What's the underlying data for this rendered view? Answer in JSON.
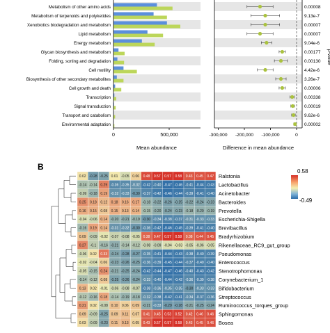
{
  "panel_a": {
    "axis_ticks": [
      "0",
      "500,000"
    ],
    "xlabel": "Mean abundance",
    "diff_xlabel": "Difference in mean abundance",
    "diff_ticks": [
      "-300,000",
      "-200,000",
      "-100,000",
      "0"
    ],
    "pvalue_label": "p-value",
    "colors": {
      "blue": "#5b8fdc",
      "green": "#bcd65a",
      "stripe": "#e6e6e6",
      "point": "#aac23e"
    }
  },
  "panel_b": {
    "label": "B",
    "legend_max": "0.58",
    "legend_min": "-0.49",
    "colors": {
      "low": "#2b6ca8",
      "mid": "#f4efb2",
      "high": "#d63027"
    }
  },
  "chart_data": [
    {
      "type": "bar",
      "categories": [
        "Metabolism of other amino acids",
        "Metabolism of terpenoids and polyketides",
        "Xenobiotics biodegradation and metabolism",
        "Lipid metabolism",
        "Energy metabolism",
        "Glycan biosynthesis and metabolism",
        "Folding, sorting and degradation",
        "Cell motility",
        "Biosynthesis of other secondary metabolites",
        "Cell growth and death",
        "Transcription",
        "Signal transduction",
        "Transport and catabolism",
        "Environmental adaptation"
      ],
      "series": [
        {
          "values": [
            390000,
            360000,
            480000,
            305000,
            255000,
            45000,
            35000,
            90000,
            30000,
            15000,
            8000,
            5000,
            3000,
            2000
          ]
        },
        {
          "values": [
            530000,
            480000,
            600000,
            445000,
            370000,
            100000,
            95000,
            210000,
            90000,
            70000,
            25000,
            20000,
            15000,
            8000
          ]
        }
      ],
      "xlim": [
        0,
        700000
      ],
      "xlabel": "Mean abundance"
    },
    {
      "type": "scatter",
      "categories": [
        "Metabolism of other amino acids",
        "Metabolism of terpenoids and polyketides",
        "Xenobiotics biodegradation and metabolism",
        "Lipid metabolism",
        "Energy metabolism",
        "Glycan biosynthesis and metabolism",
        "Folding, sorting and degradation",
        "Cell motility",
        "Biosynthesis of other secondary metabolites",
        "Cell growth and death",
        "Transcription",
        "Signal transduction",
        "Transport and catabolism",
        "Environmental adaptation"
      ],
      "x": [
        -140000,
        -120000,
        -120000,
        -140000,
        -115000,
        -55000,
        -60000,
        -120000,
        -60000,
        -55000,
        -17000,
        -15000,
        -12000,
        -6000
      ],
      "err": [
        50000,
        55000,
        55000,
        50000,
        20000,
        12000,
        25000,
        30000,
        20000,
        12000,
        8000,
        7000,
        7000,
        5000
      ],
      "pvalues": [
        "0.00008",
        "9.13e-7",
        "0.00007",
        "0.00007",
        "9.04e-6",
        "0.00177",
        "0.00130",
        "4.42e-6",
        "3.26e-7",
        "0.00006",
        "0.00338",
        "0.00019",
        "9.62e-6",
        "0.00002"
      ],
      "xlim": [
        -370000,
        20000
      ],
      "xlabel": "Difference in mean abundance"
    },
    {
      "type": "heatmap",
      "rows": [
        "Ralstonia",
        "Lactobacillus",
        "Acinetobacter",
        "Bacteroides",
        "Prevotella",
        "Escherichia-Shigella",
        "Brevibacillus",
        "Bradyrhizobium",
        "Rikenellaceae_RC9_gut_group",
        "Pseudomonas",
        "Enterococcus",
        "Stenotrophomonas",
        "Corynebacterium_1",
        "Bifidobacterium",
        "Streptococcus",
        "Ruminococcus_torques_group",
        "Sphingomonas",
        "Bosea"
      ],
      "values": [
        [
          "0.02",
          "-0.28",
          "-0.25",
          "0.01",
          "-0.05",
          "0.06",
          "0.48",
          "0.57",
          "0.57",
          "0.58",
          "0.43",
          "0.45",
          "0.47"
        ],
        [
          "-0.14",
          "-0.14",
          "0.29",
          "-0.36",
          "-0.35",
          "-0.32",
          "-0.42",
          "-0.40",
          "-0.47",
          "-0.46",
          "-0.41",
          "-0.44",
          "-0.43"
        ],
        [
          "-0.09",
          "-0.18",
          "0.19",
          "-0.32",
          "-0.33",
          "-0.30",
          "-0.37",
          "-0.42",
          "-0.46",
          "-0.44",
          "-0.39",
          "-0.41",
          "-0.40"
        ],
        [
          "0.25",
          "0.18",
          "0.12",
          "0.18",
          "0.16",
          "0.17",
          "-0.18",
          "-0.22",
          "-0.26",
          "-0.25",
          "-0.22",
          "-0.24",
          "-0.23"
        ],
        [
          "0.16",
          "0.15",
          "0.08",
          "0.15",
          "0.13",
          "0.14",
          "-0.15",
          "-0.20",
          "-0.24",
          "-0.23",
          "-0.18",
          "-0.20",
          "-0.19"
        ],
        [
          "-0.04",
          "-0.06",
          "0.14",
          "-0.20",
          "-0.21",
          "-0.19",
          "-0.30",
          "-0.34",
          "-0.38",
          "-0.37",
          "-0.31",
          "-0.33",
          "-0.33"
        ],
        [
          "-0.16",
          "0.19",
          "0.14",
          "-0.31",
          "-0.32",
          "-0.30",
          "-0.36",
          "-0.42",
          "-0.46",
          "-0.45",
          "-0.39",
          "-0.41",
          "-0.40"
        ],
        [
          "0.09",
          "-0.09",
          "-0.02",
          "-0.07",
          "-0.08",
          "-0.05",
          "0.38",
          "0.47",
          "0.57",
          "0.58",
          "0.38",
          "0.44",
          "0.45"
        ],
        [
          "0.27",
          "-0.1",
          "-0.16",
          "-0.21",
          "-0.14",
          "-0.12",
          "-0.08",
          "-0.09",
          "-0.04",
          "-0.03",
          "-0.05",
          "-0.06",
          "-0.05"
        ],
        [
          "-0.06",
          "0.02",
          "0.33",
          "-0.24",
          "-0.28",
          "-0.27",
          "-0.35",
          "-0.41",
          "-0.44",
          "-0.43",
          "-0.38",
          "-0.40",
          "-0.39"
        ],
        [
          "-0.02",
          "-0.04",
          "0.06",
          "-0.23",
          "-0.26",
          "-0.25",
          "-0.36",
          "-0.39",
          "-0.45",
          "-0.44",
          "-0.37",
          "-0.40",
          "-0.40"
        ],
        [
          "-0.05",
          "-0.15",
          "0.24",
          "-0.21",
          "-0.25",
          "-0.24",
          "-0.42",
          "-0.44",
          "-0.47",
          "-0.46",
          "-0.40",
          "-0.43",
          "-0.42"
        ],
        [
          "-0.14",
          "-0.12",
          "0.08",
          "-0.25",
          "-0.26",
          "-0.24",
          "-0.33",
          "-0.40",
          "-0.44",
          "-0.42",
          "-0.36",
          "-0.39",
          "-0.38"
        ],
        [
          "0.13",
          "0.02",
          "-0.01",
          "-0.06",
          "-0.08",
          "-0.07",
          "-0.38",
          "-0.36",
          "-0.35",
          "-0.35",
          "-0.30",
          "-0.33",
          "-0.33"
        ],
        [
          "-0.12",
          "-0.16",
          "0.18",
          "-0.14",
          "-0.19",
          "-0.18",
          "-0.32",
          "-0.38",
          "-0.42",
          "-0.41",
          "-0.34",
          "-0.37",
          "-0.36"
        ],
        [
          "0.21",
          "0.02",
          "-0.08",
          "0.10",
          "0.06",
          "0.09",
          "-0.21",
          "-0.33",
          "-0.29",
          "-0.28",
          "-0.21",
          "-0.25",
          "-0.24"
        ],
        [
          "0.09",
          "-0.09",
          "-0.25",
          "0.09",
          "0.11",
          "0.07",
          "0.41",
          "0.45",
          "0.53",
          "0.52",
          "0.42",
          "0.46",
          "0.46"
        ],
        [
          "0.03",
          "-0.09",
          "-0.23",
          "0.11",
          "0.13",
          "0.05",
          "0.43",
          "0.57",
          "0.57",
          "0.58",
          "0.43",
          "0.45",
          "0.46"
        ]
      ],
      "zlim": [
        -0.49,
        0.58
      ]
    }
  ]
}
